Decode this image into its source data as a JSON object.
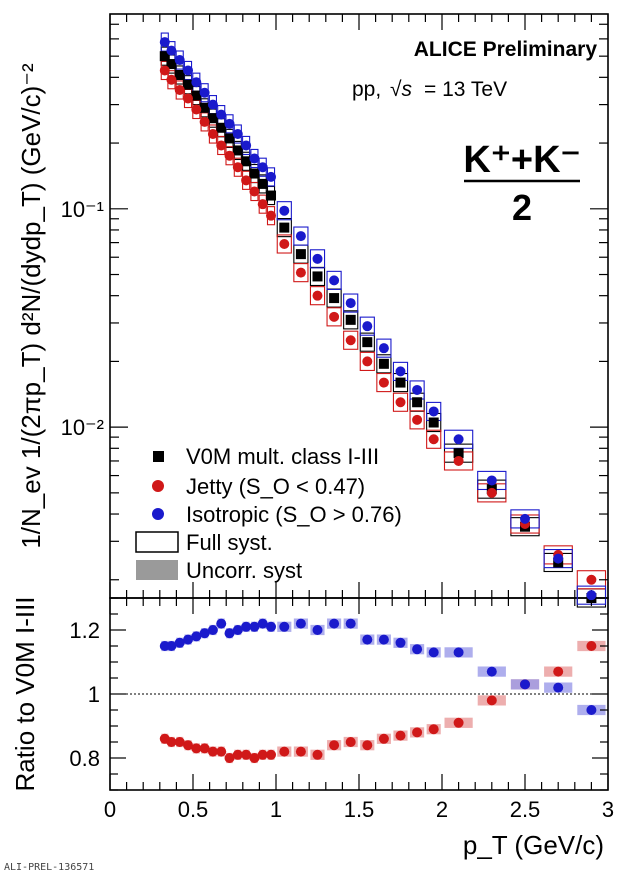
{
  "header": {
    "experiment": "ALICE Preliminary",
    "system_prefix": "pp,",
    "energy_value": "= 13 TeV",
    "particle": "K⁺+K⁻",
    "particle_den": "2"
  },
  "top_axis": {
    "ylabel": "1/N_ev 1/(2πp_T) d²N/(dydp_T) (GeV/c)⁻²",
    "scale": "log",
    "ylim": [
      0.00165,
      0.78
    ],
    "xlim": [
      0,
      3
    ],
    "ytick_labels": [
      "10⁻¹",
      "10⁻²"
    ],
    "ytick_values": [
      0.1,
      0.01
    ]
  },
  "bottom_axis": {
    "ylabel": "Ratio to V0M I-III",
    "xlabel": "p_T (GeV/c)",
    "ylim": [
      0.7,
      1.3
    ],
    "xlim": [
      0,
      3
    ],
    "reference_line": 1,
    "ytick_labels": [
      "0.8",
      "1",
      "1.2"
    ],
    "ytick_values": [
      0.8,
      1.0,
      1.2
    ],
    "xtick_labels": [
      "0",
      "0.5",
      "1",
      "1.5",
      "2",
      "2.5",
      "3"
    ],
    "xtick_values": [
      0,
      0.5,
      1.0,
      1.5,
      2.0,
      2.5,
      3.0
    ]
  },
  "legend": {
    "placement": "bottom-left",
    "entries": [
      "V0M mult. class I-III",
      "Jetty (S_O < 0.47)",
      "Isotropic (S_O > 0.76)",
      "Full syst.",
      "Uncorr. syst"
    ]
  },
  "stamp": "ALI-PREL-136571",
  "colors": {
    "v0m": "#000000",
    "jetty": "#d01818",
    "iso": "#1a1acc",
    "jetty_band": "#e89a9a",
    "iso_band": "#9a9ae8",
    "uncorr": "#9a9a9a"
  },
  "chart_data": [
    {
      "type": "scatter",
      "panel": "spectra",
      "x": [
        0.33,
        0.37,
        0.42,
        0.47,
        0.52,
        0.57,
        0.62,
        0.67,
        0.72,
        0.77,
        0.82,
        0.87,
        0.92,
        0.97,
        1.05,
        1.15,
        1.25,
        1.35,
        1.45,
        1.55,
        1.65,
        1.75,
        1.85,
        1.95,
        2.1,
        2.3,
        2.5,
        2.7,
        2.9
      ],
      "series": [
        {
          "name": "V0M mult. class I-III",
          "marker": "square",
          "values": [
            0.5,
            0.46,
            0.41,
            0.37,
            0.33,
            0.29,
            0.26,
            0.235,
            0.21,
            0.185,
            0.165,
            0.145,
            0.13,
            0.115,
            0.082,
            0.062,
            0.049,
            0.039,
            0.031,
            0.0245,
            0.0195,
            0.016,
            0.013,
            0.0105,
            0.0076,
            0.0052,
            0.0035,
            0.0024,
            0.00165
          ]
        },
        {
          "name": "Jetty (S_O < 0.47)",
          "marker": "circle",
          "values": [
            0.43,
            0.39,
            0.35,
            0.32,
            0.285,
            0.25,
            0.22,
            0.195,
            0.175,
            0.155,
            0.135,
            0.12,
            0.105,
            0.093,
            0.069,
            0.051,
            0.04,
            0.032,
            0.025,
            0.02,
            0.016,
            0.013,
            0.0108,
            0.0088,
            0.007,
            0.005,
            0.0036,
            0.0026,
            0.002
          ]
        },
        {
          "name": "Isotropic (S_O > 0.76)",
          "marker": "circle",
          "values": [
            0.58,
            0.53,
            0.48,
            0.43,
            0.38,
            0.34,
            0.3,
            0.27,
            0.245,
            0.22,
            0.195,
            0.17,
            0.155,
            0.14,
            0.098,
            0.075,
            0.059,
            0.047,
            0.037,
            0.029,
            0.023,
            0.018,
            0.0148,
            0.0118,
            0.0088,
            0.0057,
            0.0038,
            0.0025,
            0.0017
          ]
        }
      ]
    },
    {
      "type": "scatter",
      "panel": "ratio",
      "x": [
        0.33,
        0.37,
        0.42,
        0.47,
        0.52,
        0.57,
        0.62,
        0.67,
        0.72,
        0.77,
        0.82,
        0.87,
        0.92,
        0.97,
        1.05,
        1.15,
        1.25,
        1.35,
        1.45,
        1.55,
        1.65,
        1.75,
        1.85,
        1.95,
        2.1,
        2.3,
        2.5,
        2.7,
        2.9
      ],
      "series": [
        {
          "name": "Jetty (S_O < 0.47)",
          "values": [
            0.86,
            0.85,
            0.85,
            0.84,
            0.83,
            0.83,
            0.82,
            0.82,
            0.8,
            0.81,
            0.81,
            0.8,
            0.81,
            0.81,
            0.82,
            0.82,
            0.81,
            0.84,
            0.85,
            0.84,
            0.86,
            0.87,
            0.88,
            0.89,
            0.91,
            0.98,
            1.03,
            1.07,
            1.15
          ]
        },
        {
          "name": "Isotropic (S_O > 0.76)",
          "values": [
            1.15,
            1.15,
            1.16,
            1.17,
            1.18,
            1.19,
            1.2,
            1.22,
            1.19,
            1.2,
            1.21,
            1.21,
            1.22,
            1.21,
            1.21,
            1.22,
            1.2,
            1.22,
            1.22,
            1.17,
            1.17,
            1.16,
            1.14,
            1.13,
            1.13,
            1.07,
            1.03,
            1.02,
            0.95
          ]
        }
      ]
    }
  ]
}
